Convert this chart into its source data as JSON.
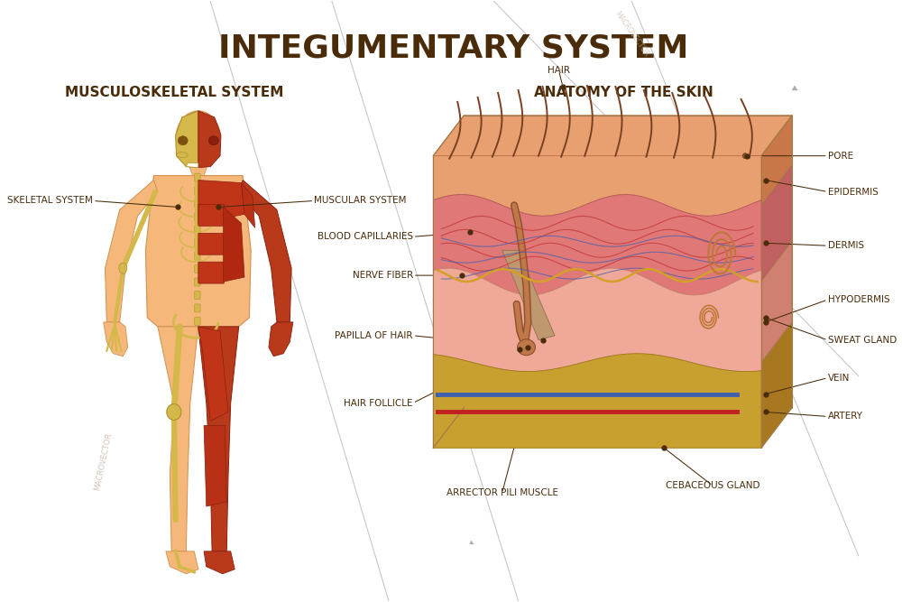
{
  "title": "INTEGUMENTARY SYSTEM",
  "title_color": "#4a2c0a",
  "title_fontsize": 26,
  "title_fontweight": "bold",
  "bg_color": "#ffffff",
  "left_section_title": "MUSCULOSKELETAL SYSTEM",
  "right_section_title": "ANATOMY OF THE SKIN",
  "section_title_color": "#4a2c0a",
  "section_title_fontsize": 11,
  "label_color": "#4a2c0a",
  "label_fontsize": 7.5,
  "dot_color": "#4a2c0a",
  "line_color": "#4a2c0a",
  "watermark": "MACROVECTOR",
  "body_skin_color": "#f5b87a",
  "body_muscle_color": "#b83a1a",
  "body_bone_color": "#d4b84a",
  "epi_color": "#e8a878",
  "derm_color": "#e87878",
  "hypo_color": "#f0a898",
  "fat_color": "#c8a830",
  "hair_color": "#7a4020"
}
